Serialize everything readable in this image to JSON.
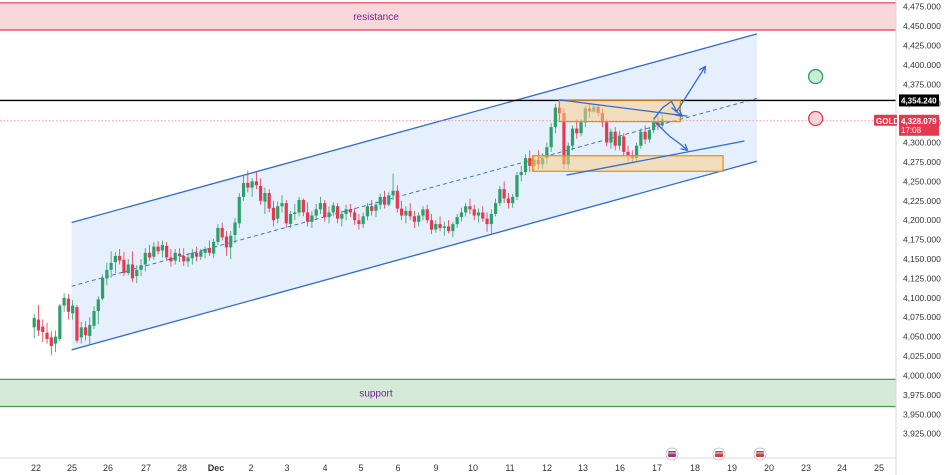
{
  "chart_data": {
    "type": "candlestick",
    "symbol": "GOLD",
    "y_axis": {
      "ylim": [
        3910,
        4490
      ],
      "ticks": [
        "4,475.000",
        "4,450.000",
        "4,425.000",
        "4,400.000",
        "4,375.000",
        "4,350.000",
        "4,325.000",
        "4,300.000",
        "4,275.000",
        "4,250.000",
        "4,225.000",
        "4,200.000",
        "4,175.000",
        "4,150.000",
        "4,125.000",
        "4,100.000",
        "4,075.000",
        "4,050.000",
        "4,025.000",
        "4,000.000",
        "3,975.000",
        "3,950.000",
        "3,925.000"
      ]
    },
    "x_axis": {
      "labels": [
        "22",
        "25",
        "26",
        "27",
        "28",
        "Dec",
        "2",
        "3",
        "4",
        "5",
        "6",
        "9",
        "10",
        "11",
        "12",
        "13",
        "16",
        "17",
        "18",
        "19",
        "20",
        "23",
        "24",
        "25"
      ]
    },
    "price_tags": {
      "level": {
        "text": "4,354.240",
        "value": 4354.24
      },
      "current": {
        "symbol": "GOLD",
        "price": "4,328.079",
        "countdown": "17:08",
        "value": 4328.08
      }
    },
    "zones": [
      {
        "name": "resistance",
        "low": 4445,
        "high": 4480,
        "color": "#f8d7da",
        "border": "#e53950"
      },
      {
        "name": "support",
        "low": 3960,
        "high": 3995,
        "color": "#d4ead6",
        "border": "#43a047"
      }
    ],
    "horizontal_line": {
      "value": 4354.24,
      "color": "#000000"
    },
    "dotted_line": {
      "value": 4328.08,
      "color": "#f08080"
    },
    "channel": {
      "upper": [
        [
          1.0,
          4197
        ],
        [
          20.25,
          4440
        ]
      ],
      "middle": [
        [
          1.0,
          4115
        ],
        [
          20.25,
          4357
        ]
      ],
      "lower": [
        [
          1.0,
          4033
        ],
        [
          20.25,
          4276
        ]
      ]
    },
    "boxes": [
      {
        "x0": 14.7,
        "x1": 18.1,
        "low": 4327,
        "high": 4355
      },
      {
        "x0": 13.95,
        "x1": 19.3,
        "low": 4263,
        "high": 4283
      }
    ],
    "flag_lines": [
      [
        [
          14.7,
          4355
        ],
        [
          18.3,
          4334
        ]
      ],
      [
        [
          14.9,
          4258
        ],
        [
          19.9,
          4302
        ]
      ]
    ],
    "arrows": [
      {
        "from": [
          17.85,
          4353
        ],
        "to": [
          18.8,
          4398
        ]
      },
      {
        "from": [
          17.8,
          4310
        ],
        "to": [
          18.3,
          4292
        ]
      }
    ],
    "circle_markers": [
      {
        "x": 21.9,
        "value": 4385,
        "color": "#2e9e6b"
      },
      {
        "x": 21.9,
        "value": 4331,
        "color": "#e53950"
      }
    ],
    "candle_colors": {
      "up": "#2e9e6b",
      "down": "#e53950"
    },
    "candles": [
      [
        -0.05,
        4062,
        4079,
        4048,
        4074
      ],
      [
        0.07,
        4072,
        4091,
        4051,
        4058
      ],
      [
        0.19,
        4063,
        4072,
        4043,
        4056
      ],
      [
        0.31,
        4055,
        4068,
        4041,
        4047
      ],
      [
        0.43,
        4049,
        4057,
        4026,
        4038
      ],
      [
        0.55,
        4041,
        4058,
        4030,
        4050
      ],
      [
        0.67,
        4047,
        4092,
        4044,
        4090
      ],
      [
        0.79,
        4090,
        4106,
        4082,
        4100
      ],
      [
        0.91,
        4099,
        4105,
        4072,
        4082
      ],
      [
        1.03,
        4080,
        4097,
        4072,
        4090
      ],
      [
        1.15,
        4088,
        4091,
        4042,
        4045
      ],
      [
        1.27,
        4049,
        4069,
        4041,
        4062
      ],
      [
        1.39,
        4062,
        4070,
        4045,
        4052
      ],
      [
        1.51,
        4051,
        4075,
        4040,
        4065
      ],
      [
        1.63,
        4064,
        4089,
        4060,
        4083
      ],
      [
        1.75,
        4083,
        4102,
        4066,
        4098
      ],
      [
        1.87,
        4099,
        4130,
        4097,
        4126
      ],
      [
        1.99,
        4125,
        4145,
        4116,
        4136
      ],
      [
        2.11,
        4136,
        4160,
        4126,
        4145
      ],
      [
        2.23,
        4146,
        4159,
        4132,
        4154
      ],
      [
        2.35,
        4154,
        4163,
        4143,
        4148
      ],
      [
        2.47,
        4149,
        4159,
        4128,
        4132
      ],
      [
        2.59,
        4132,
        4150,
        4129,
        4143
      ],
      [
        2.71,
        4143,
        4160,
        4120,
        4125
      ],
      [
        2.83,
        4128,
        4142,
        4119,
        4136
      ],
      [
        2.95,
        4136,
        4150,
        4128,
        4142
      ],
      [
        3.07,
        4143,
        4164,
        4134,
        4158
      ],
      [
        3.19,
        4158,
        4168,
        4148,
        4152
      ],
      [
        3.31,
        4153,
        4172,
        4149,
        4166
      ],
      [
        3.43,
        4166,
        4173,
        4156,
        4160
      ],
      [
        3.55,
        4161,
        4174,
        4152,
        4168
      ],
      [
        3.67,
        4167,
        4172,
        4148,
        4152
      ],
      [
        3.79,
        4152,
        4163,
        4140,
        4147
      ],
      [
        3.91,
        4148,
        4163,
        4143,
        4158
      ],
      [
        4.03,
        4157,
        4164,
        4146,
        4154
      ],
      [
        4.15,
        4154,
        4164,
        4141,
        4147
      ],
      [
        4.27,
        4147,
        4158,
        4140,
        4152
      ],
      [
        4.39,
        4151,
        4163,
        4143,
        4158
      ],
      [
        4.51,
        4158,
        4166,
        4147,
        4153
      ],
      [
        4.63,
        4153,
        4163,
        4149,
        4160
      ],
      [
        4.75,
        4158,
        4166,
        4151,
        4163
      ],
      [
        4.87,
        4164,
        4174,
        4154,
        4158
      ],
      [
        4.99,
        4157,
        4176,
        4151,
        4172
      ],
      [
        5.11,
        4172,
        4195,
        4168,
        4190
      ],
      [
        5.23,
        4190,
        4197,
        4174,
        4178
      ],
      [
        5.35,
        4179,
        4186,
        4154,
        4165
      ],
      [
        5.47,
        4165,
        4186,
        4150,
        4180
      ],
      [
        5.59,
        4181,
        4203,
        4170,
        4197
      ],
      [
        5.71,
        4196,
        4235,
        4190,
        4230
      ],
      [
        5.83,
        4230,
        4258,
        4225,
        4248
      ],
      [
        5.95,
        4248,
        4264,
        4236,
        4242
      ],
      [
        6.07,
        4242,
        4254,
        4230,
        4250
      ],
      [
        6.19,
        4250,
        4262,
        4240,
        4245
      ],
      [
        6.31,
        4244,
        4254,
        4220,
        4225
      ],
      [
        6.43,
        4224,
        4242,
        4208,
        4235
      ],
      [
        6.55,
        4235,
        4240,
        4210,
        4215
      ],
      [
        6.67,
        4216,
        4225,
        4192,
        4200
      ],
      [
        6.79,
        4202,
        4224,
        4196,
        4218
      ],
      [
        6.91,
        4218,
        4232,
        4210,
        4222
      ],
      [
        7.03,
        4222,
        4226,
        4190,
        4196
      ],
      [
        7.15,
        4195,
        4212,
        4190,
        4208
      ],
      [
        7.27,
        4208,
        4221,
        4200,
        4210
      ],
      [
        7.39,
        4210,
        4230,
        4205,
        4226
      ],
      [
        7.51,
        4226,
        4228,
        4205,
        4210
      ],
      [
        7.63,
        4210,
        4223,
        4192,
        4198
      ],
      [
        7.75,
        4198,
        4212,
        4190,
        4206
      ],
      [
        7.87,
        4206,
        4221,
        4200,
        4214
      ],
      [
        7.99,
        4214,
        4230,
        4208,
        4222
      ],
      [
        8.11,
        4222,
        4226,
        4198,
        4204
      ],
      [
        8.23,
        4204,
        4218,
        4196,
        4210
      ],
      [
        8.35,
        4210,
        4223,
        4205,
        4219
      ],
      [
        8.47,
        4218,
        4222,
        4196,
        4202
      ],
      [
        8.59,
        4202,
        4212,
        4192,
        4208
      ],
      [
        8.71,
        4208,
        4220,
        4200,
        4214
      ],
      [
        8.83,
        4214,
        4221,
        4204,
        4210
      ],
      [
        8.95,
        4210,
        4216,
        4194,
        4200
      ],
      [
        9.07,
        4200,
        4208,
        4188,
        4195
      ],
      [
        9.19,
        4195,
        4210,
        4190,
        4205
      ],
      [
        9.31,
        4205,
        4222,
        4200,
        4218
      ],
      [
        9.43,
        4218,
        4226,
        4206,
        4212
      ],
      [
        9.55,
        4212,
        4224,
        4204,
        4220
      ],
      [
        9.67,
        4220,
        4234,
        4214,
        4230
      ],
      [
        9.79,
        4230,
        4238,
        4215,
        4220
      ],
      [
        9.91,
        4220,
        4236,
        4218,
        4232
      ],
      [
        10.03,
        4232,
        4260,
        4226,
        4238
      ],
      [
        10.15,
        4238,
        4245,
        4210,
        4215
      ],
      [
        10.27,
        4215,
        4225,
        4200,
        4206
      ],
      [
        10.39,
        4206,
        4218,
        4196,
        4212
      ],
      [
        10.51,
        4212,
        4222,
        4200,
        4205
      ],
      [
        10.63,
        4205,
        4212,
        4190,
        4198
      ],
      [
        10.75,
        4198,
        4210,
        4192,
        4206
      ],
      [
        10.87,
        4206,
        4218,
        4200,
        4214
      ],
      [
        10.99,
        4214,
        4220,
        4196,
        4200
      ],
      [
        11.11,
        4200,
        4208,
        4182,
        4188
      ],
      [
        11.23,
        4188,
        4200,
        4184,
        4195
      ],
      [
        11.35,
        4195,
        4205,
        4186,
        4190
      ],
      [
        11.47,
        4190,
        4198,
        4180,
        4192
      ],
      [
        11.59,
        4192,
        4200,
        4183,
        4186
      ],
      [
        11.71,
        4186,
        4198,
        4178,
        4195
      ],
      [
        11.83,
        4195,
        4208,
        4190,
        4204
      ],
      [
        11.95,
        4204,
        4216,
        4198,
        4210
      ],
      [
        12.07,
        4210,
        4222,
        4205,
        4218
      ],
      [
        12.19,
        4218,
        4228,
        4208,
        4214
      ],
      [
        12.31,
        4214,
        4220,
        4200,
        4206
      ],
      [
        12.43,
        4206,
        4215,
        4197,
        4210
      ],
      [
        12.55,
        4210,
        4218,
        4198,
        4202
      ],
      [
        12.67,
        4202,
        4210,
        4185,
        4195
      ],
      [
        12.79,
        4195,
        4214,
        4182,
        4208
      ],
      [
        12.91,
        4208,
        4228,
        4205,
        4222
      ],
      [
        13.03,
        4222,
        4244,
        4218,
        4240
      ],
      [
        13.15,
        4240,
        4250,
        4222,
        4228
      ],
      [
        13.27,
        4228,
        4235,
        4215,
        4222
      ],
      [
        13.39,
        4222,
        4234,
        4216,
        4230
      ],
      [
        13.51,
        4230,
        4262,
        4226,
        4258
      ],
      [
        13.63,
        4258,
        4270,
        4250,
        4262
      ],
      [
        13.75,
        4262,
        4285,
        4258,
        4280
      ],
      [
        13.87,
        4280,
        4290,
        4262,
        4270
      ],
      [
        13.99,
        4270,
        4284,
        4264,
        4278
      ],
      [
        14.11,
        4278,
        4290,
        4266,
        4272
      ],
      [
        14.23,
        4272,
        4286,
        4266,
        4280
      ],
      [
        14.35,
        4280,
        4300,
        4272,
        4294
      ],
      [
        14.47,
        4294,
        4325,
        4288,
        4320
      ],
      [
        14.59,
        4320,
        4350,
        4312,
        4345
      ],
      [
        14.71,
        4345,
        4353,
        4332,
        4338
      ],
      [
        14.83,
        4338,
        4344,
        4266,
        4272
      ],
      [
        14.95,
        4272,
        4300,
        4266,
        4296
      ],
      [
        15.07,
        4296,
        4322,
        4290,
        4318
      ],
      [
        15.19,
        4318,
        4330,
        4305,
        4312
      ],
      [
        15.31,
        4312,
        4330,
        4308,
        4326
      ],
      [
        15.43,
        4326,
        4348,
        4320,
        4344
      ],
      [
        15.55,
        4344,
        4350,
        4332,
        4340
      ],
      [
        15.67,
        4340,
        4349,
        4338,
        4346
      ],
      [
        15.79,
        4346,
        4350,
        4334,
        4338
      ],
      [
        15.91,
        4338,
        4344,
        4320,
        4326
      ],
      [
        16.03,
        4326,
        4330,
        4295,
        4300
      ],
      [
        16.15,
        4300,
        4318,
        4292,
        4314
      ],
      [
        16.27,
        4314,
        4320,
        4290,
        4296
      ],
      [
        16.39,
        4296,
        4315,
        4290,
        4308
      ],
      [
        16.51,
        4308,
        4312,
        4282,
        4288
      ],
      [
        16.63,
        4288,
        4296,
        4276,
        4284
      ],
      [
        16.75,
        4284,
        4290,
        4274,
        4280
      ],
      [
        16.87,
        4280,
        4300,
        4276,
        4296
      ],
      [
        16.99,
        4296,
        4318,
        4292,
        4314
      ],
      [
        17.11,
        4314,
        4322,
        4298,
        4304
      ],
      [
        17.23,
        4304,
        4320,
        4300,
        4316
      ],
      [
        17.35,
        4316,
        4332,
        4312,
        4326
      ],
      [
        17.47,
        4326,
        4335,
        4316,
        4322
      ],
      [
        17.59,
        4322,
        4336,
        4318,
        4330
      ]
    ]
  }
}
